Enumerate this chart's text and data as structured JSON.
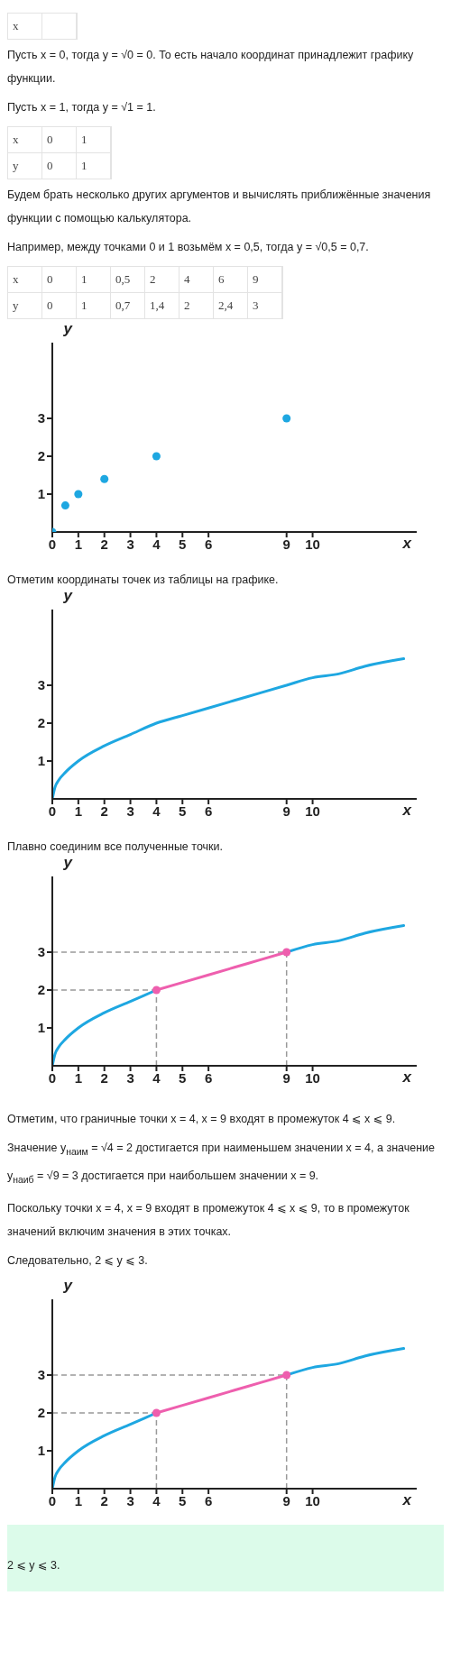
{
  "chart_data": [
    {
      "type": "other",
      "annotations": [
        "x\t",
        "Пусть x = 0, тогда y = √0 = 0. То есть начало координат принадлежит графику функции.",
        "Пусть x = 1, тогда y = √1 = 1.",
        "x\t0\t1",
        "y\t0\t1",
        "Будем брать несколько других аргументов и вычислять приближённые значения функции с помощью калькулятора.",
        "Например, между точками 0 и 1 возьмём x = 0,5, тогда y = √0,5 = 0,7.",
        "x\t0\t1\t0,5\t2\t4\t6\t9",
        "y\t0\t1\t0,7\t1,4\t2\t2,4\t3"
      ]
    },
    {
      "type": "scatter",
      "xlabel": "x",
      "ylabel": "y",
      "xlim": [
        0,
        14
      ],
      "ylim": [
        0,
        5
      ],
      "xticks": [
        0,
        1,
        2,
        3,
        4,
        5,
        6,
        9,
        10
      ],
      "yticks": [
        1,
        2,
        3
      ],
      "marker": "circle",
      "series": [
        {
          "color": "#1ea7e1",
          "x": [
            0,
            0.5,
            1,
            2,
            4,
            9
          ],
          "values": [
            0,
            0.7,
            1,
            1.4,
            2,
            3
          ]
        }
      ]
    },
    {
      "type": "line",
      "title": "Отметим координаты точек из таблицы на графике.",
      "xlabel": "x",
      "ylabel": "y",
      "xlim": [
        0,
        14
      ],
      "ylim": [
        0,
        5
      ],
      "xticks": [
        0,
        1,
        2,
        3,
        4,
        5,
        6,
        9,
        10
      ],
      "yticks": [
        1,
        2,
        3
      ],
      "marker": "none",
      "series": [
        {
          "color": "#1ea7e1",
          "x": [
            0,
            0.1,
            0.25,
            0.5,
            1,
            2,
            3,
            4,
            5,
            6,
            7,
            8,
            9,
            10,
            11,
            12,
            13.5
          ],
          "values": [
            0,
            0.3,
            0.5,
            0.7,
            1,
            1.4,
            1.7,
            2,
            2.2,
            2.4,
            2.6,
            2.8,
            3,
            3.2,
            3.3,
            3.5,
            3.7
          ]
        }
      ]
    },
    {
      "type": "line",
      "title": "Плавно соединим все полученные точки.",
      "xlabel": "x",
      "ylabel": "y",
      "xlim": [
        0,
        14
      ],
      "ylim": [
        0,
        5
      ],
      "xticks": [
        0,
        1,
        2,
        3,
        4,
        5,
        6,
        9,
        10
      ],
      "yticks": [
        1,
        2,
        3
      ],
      "marker": "none",
      "series": [
        {
          "color": "#1ea7e1",
          "x": [
            0,
            0.1,
            0.25,
            0.5,
            1,
            2,
            3,
            4
          ],
          "values": [
            0,
            0.3,
            0.5,
            0.7,
            1,
            1.4,
            1.7,
            2
          ]
        },
        {
          "color": "#1ea7e1",
          "x": [
            9,
            10,
            11,
            12,
            13.5
          ],
          "values": [
            3,
            3.2,
            3.3,
            3.5,
            3.7
          ]
        },
        {
          "color": "#ee5fae",
          "x": [
            4,
            5,
            6,
            7,
            8,
            9
          ],
          "values": [
            2,
            2.2,
            2.4,
            2.6,
            2.8,
            3
          ]
        },
        {
          "type": "scatter",
          "marker": "circle",
          "color": "#ee5fae",
          "x": [
            4,
            9
          ],
          "values": [
            2,
            3
          ]
        }
      ],
      "ref_lines": [
        {
          "axis": "y",
          "value": 2,
          "color": "#999999",
          "line_style": "dashed"
        },
        {
          "axis": "y",
          "value": 3,
          "color": "#999999",
          "line_style": "dashed"
        },
        {
          "axis": "x",
          "value": 4,
          "color": "#999999",
          "line_style": "dashed"
        },
        {
          "axis": "x",
          "value": 9,
          "color": "#999999",
          "line_style": "dashed"
        }
      ]
    },
    {
      "type": "other",
      "annotations": [
        "Отметим, что граничные точки x = 4, x = 9 входят в промежуток 4 ⩽ x ⩽ 9.",
        "Значение y$_{наим}$ = √4 = 2 достигается при наименьшем значении x = 4, а значение y$_{наиб}$ = √9 = 3 достигается при наибольшем значении x = 9.",
        "Поскольку точки x = 4, x = 9 входят в промежуток 4 ⩽ x ⩽ 9, то в промежуток значений включим значения в этих точках.",
        "Следовательно, 2 ⩽ y ⩽ 3."
      ]
    },
    {
      "type": "line",
      "xlabel": "x",
      "ylabel": "y",
      "xlim": [
        0,
        14
      ],
      "ylim": [
        0,
        5
      ],
      "xticks": [
        0,
        1,
        2,
        3,
        4,
        5,
        6,
        9,
        10
      ],
      "yticks": [
        1,
        2,
        3
      ],
      "marker": "none",
      "series": [
        {
          "color": "#1ea7e1",
          "x": [
            0,
            0.1,
            0.25,
            0.5,
            1,
            2,
            3,
            4
          ],
          "values": [
            0,
            0.3,
            0.5,
            0.7,
            1,
            1.4,
            1.7,
            2
          ]
        },
        {
          "color": "#1ea7e1",
          "x": [
            9,
            10,
            11,
            12,
            13.5
          ],
          "values": [
            3,
            3.2,
            3.3,
            3.5,
            3.7
          ]
        },
        {
          "color": "#ee5fae",
          "x": [
            4,
            5,
            6,
            7,
            8,
            9
          ],
          "values": [
            2,
            2.2,
            2.4,
            2.6,
            2.8,
            3
          ]
        },
        {
          "type": "scatter",
          "marker": "circle",
          "color": "#ee5fae",
          "x": [
            4,
            9
          ],
          "values": [
            2,
            3
          ]
        }
      ],
      "ref_lines": [
        {
          "axis": "y",
          "value": 2,
          "color": "#999999",
          "line_style": "dashed"
        },
        {
          "axis": "y",
          "value": 3,
          "color": "#999999",
          "line_style": "dashed"
        },
        {
          "axis": "x",
          "value": 4,
          "color": "#999999",
          "line_style": "dashed"
        },
        {
          "axis": "x",
          "value": 9,
          "color": "#999999",
          "line_style": "dashed"
        }
      ]
    },
    {
      "type": "other",
      "color": "#dcfbea",
      "annotations": [
        "2 ⩽ y ⩽ 3."
      ]
    }
  ]
}
